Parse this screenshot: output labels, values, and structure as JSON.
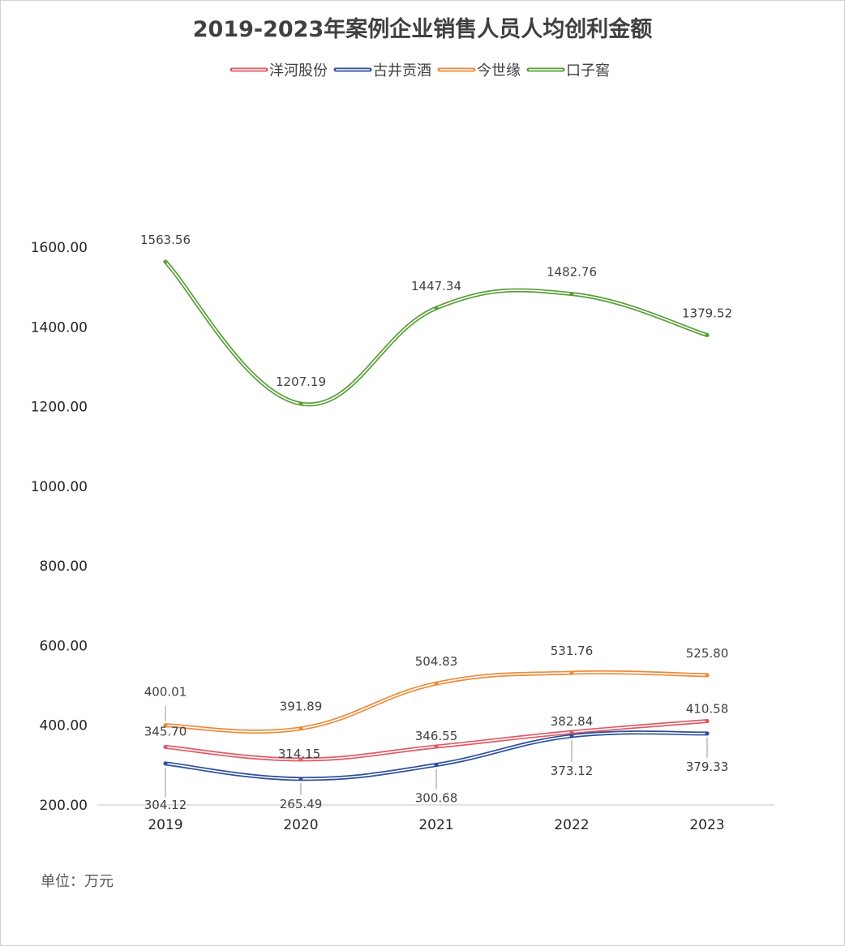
{
  "chart_data": {
    "type": "line",
    "title": "2019-2023年案例企业销售人员人均创利金额",
    "unit_note": "单位：万元",
    "categories": [
      "2019",
      "2020",
      "2021",
      "2022",
      "2023"
    ],
    "ylim": [
      200,
      1600
    ],
    "yticks": [
      "200.00",
      "400.00",
      "600.00",
      "800.00",
      "1000.00",
      "1200.00",
      "1400.00",
      "1600.00"
    ],
    "legend_position": "top",
    "grid": false,
    "series": [
      {
        "name": "洋河股份",
        "color": "#e05a66",
        "values": [
          345.7,
          314.15,
          346.55,
          382.84,
          410.58
        ],
        "labels": [
          "345.70",
          "314.15",
          "346.55",
          "382.84",
          "410.58"
        ]
      },
      {
        "name": "古井贡酒",
        "color": "#2e4f9b",
        "values": [
          304.12,
          265.49,
          300.68,
          373.12,
          379.33
        ],
        "labels": [
          "304.12",
          "265.49",
          "300.68",
          "373.12",
          "379.33"
        ]
      },
      {
        "name": "今世缘",
        "color": "#ec8a3a",
        "values": [
          400.01,
          391.89,
          504.83,
          531.76,
          525.8
        ],
        "labels": [
          "400.01",
          "391.89",
          "504.83",
          "531.76",
          "525.80"
        ]
      },
      {
        "name": "口子窖",
        "color": "#5a9e3a",
        "values": [
          1563.56,
          1207.19,
          1447.34,
          1482.76,
          1379.52
        ],
        "labels": [
          "1563.56",
          "1207.19",
          "1447.34",
          "1482.76",
          "1379.52"
        ]
      }
    ]
  }
}
